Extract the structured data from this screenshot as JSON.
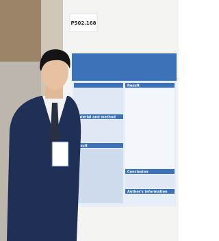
{
  "sign": {
    "code": "P502.168"
  },
  "poster": {
    "sections": [
      "Result",
      "Material and method",
      "Result",
      "Conclusion",
      "Author's information"
    ]
  }
}
